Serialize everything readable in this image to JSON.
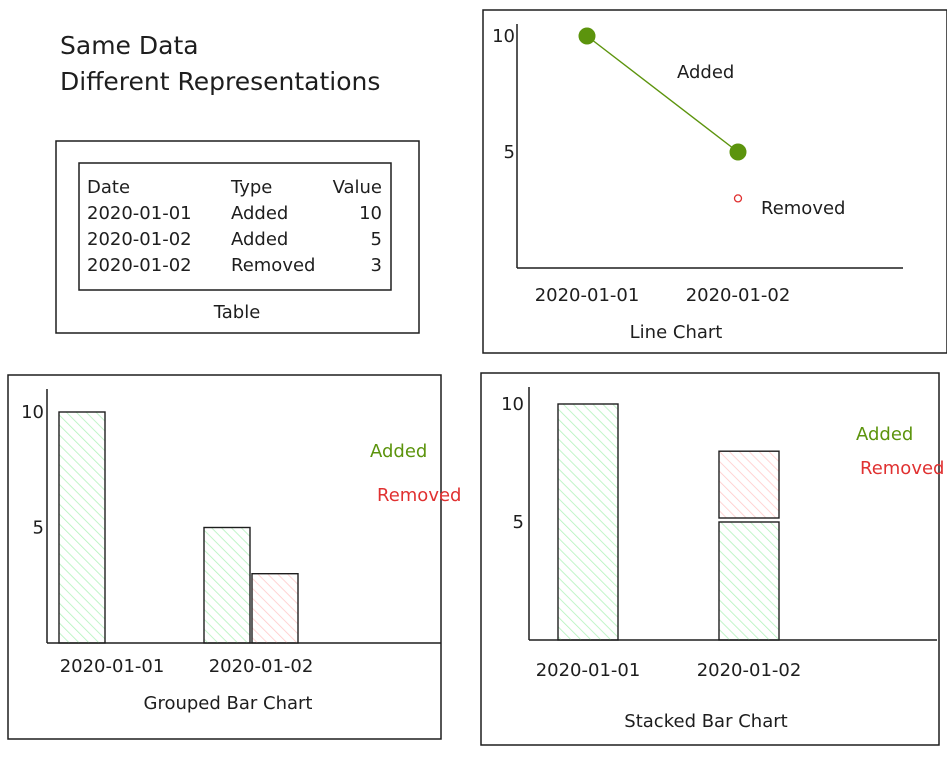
{
  "title": {
    "line1": "Same Data",
    "line2": "Different Representations"
  },
  "colors": {
    "added": "#5c940d",
    "added_fill": "#b2f2bb",
    "removed": "#e03131",
    "removed_fill": "#ffc9c9",
    "ink": "#1e1e1e"
  },
  "table": {
    "caption": "Table",
    "headers": [
      "Date",
      "Type",
      "Value"
    ],
    "rows": [
      [
        "2020-01-01",
        "Added",
        "10"
      ],
      [
        "2020-01-02",
        "Added",
        "5"
      ],
      [
        "2020-01-02",
        "Removed",
        "3"
      ]
    ]
  },
  "chart_data": [
    {
      "type": "line",
      "caption": "Line Chart",
      "categories": [
        "2020-01-01",
        "2020-01-02"
      ],
      "y_ticks": [
        5,
        10
      ],
      "ylim": [
        0,
        10.5
      ],
      "series": [
        {
          "name": "Added",
          "values": [
            10,
            5
          ]
        },
        {
          "name": "Removed",
          "values": [
            null,
            3
          ]
        }
      ]
    },
    {
      "type": "bar",
      "caption": "Grouped Bar Chart",
      "categories": [
        "2020-01-01",
        "2020-01-02"
      ],
      "y_ticks": [
        5,
        10
      ],
      "ylim": [
        0,
        10.5
      ],
      "series": [
        {
          "name": "Added",
          "values": [
            10,
            5
          ]
        },
        {
          "name": "Removed",
          "values": [
            0,
            3
          ]
        }
      ]
    },
    {
      "type": "bar",
      "caption": "Stacked Bar Chart",
      "stacked": true,
      "categories": [
        "2020-01-01",
        "2020-01-02"
      ],
      "y_ticks": [
        5,
        10
      ],
      "ylim": [
        0,
        10.5
      ],
      "series": [
        {
          "name": "Added",
          "values": [
            10,
            5
          ]
        },
        {
          "name": "Removed",
          "values": [
            0,
            3
          ]
        }
      ]
    }
  ]
}
